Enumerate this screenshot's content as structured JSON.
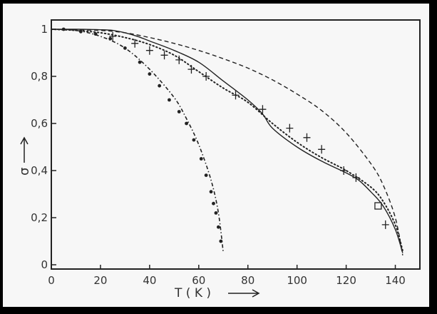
{
  "chart_data": {
    "type": "line",
    "xlabel": "T ( K )",
    "ylabel": "σ",
    "xlim": [
      0,
      150
    ],
    "ylim": [
      0,
      1.05
    ],
    "x_ticks": [
      "0",
      "20",
      "40",
      "60",
      "80",
      "100",
      "120",
      "140"
    ],
    "y_ticks": [
      "0",
      "0,2",
      "0,4",
      "0,6",
      "0,8",
      "1"
    ],
    "grid": false,
    "legend": "none",
    "series": [
      {
        "style": "dashed",
        "points": [
          [
            0,
            1
          ],
          [
            20,
            0.995
          ],
          [
            30,
            0.985
          ],
          [
            40,
            0.965
          ],
          [
            50,
            0.94
          ],
          [
            60,
            0.91
          ],
          [
            70,
            0.875
          ],
          [
            80,
            0.835
          ],
          [
            90,
            0.785
          ],
          [
            100,
            0.725
          ],
          [
            110,
            0.655
          ],
          [
            120,
            0.56
          ],
          [
            130,
            0.43
          ],
          [
            135,
            0.34
          ],
          [
            140,
            0.2
          ],
          [
            143,
            0.04
          ]
        ]
      },
      {
        "style": "solid",
        "points": [
          [
            0,
            1
          ],
          [
            10,
            1
          ],
          [
            20,
            0.998
          ],
          [
            25,
            0.995
          ],
          [
            30,
            0.985
          ],
          [
            35,
            0.97
          ],
          [
            40,
            0.95
          ],
          [
            50,
            0.91
          ],
          [
            60,
            0.86
          ],
          [
            70,
            0.78
          ],
          [
            80,
            0.7
          ],
          [
            86,
            0.64
          ],
          [
            90,
            0.58
          ],
          [
            100,
            0.5
          ],
          [
            110,
            0.44
          ],
          [
            120,
            0.39
          ],
          [
            125,
            0.36
          ],
          [
            130,
            0.31
          ],
          [
            135,
            0.25
          ],
          [
            140,
            0.15
          ],
          [
            143,
            0.05
          ]
        ]
      },
      {
        "style": "dotted",
        "points": [
          [
            0,
            1
          ],
          [
            10,
            0.995
          ],
          [
            20,
            0.985
          ],
          [
            30,
            0.965
          ],
          [
            40,
            0.935
          ],
          [
            50,
            0.89
          ],
          [
            60,
            0.82
          ],
          [
            70,
            0.75
          ],
          [
            80,
            0.69
          ],
          [
            90,
            0.6
          ],
          [
            100,
            0.52
          ],
          [
            110,
            0.455
          ],
          [
            120,
            0.4
          ],
          [
            130,
            0.33
          ],
          [
            135,
            0.27
          ],
          [
            140,
            0.17
          ],
          [
            143,
            0.06
          ]
        ]
      },
      {
        "style": "dash-dot",
        "points": [
          [
            0,
            1
          ],
          [
            10,
            0.995
          ],
          [
            20,
            0.97
          ],
          [
            30,
            0.92
          ],
          [
            40,
            0.83
          ],
          [
            50,
            0.71
          ],
          [
            55,
            0.62
          ],
          [
            60,
            0.51
          ],
          [
            65,
            0.36
          ],
          [
            68,
            0.22
          ],
          [
            70,
            0.05
          ]
        ]
      },
      {
        "style": "plus-markers",
        "points": [
          [
            25,
            0.97
          ],
          [
            34,
            0.94
          ],
          [
            40,
            0.91
          ],
          [
            46,
            0.89
          ],
          [
            52,
            0.87
          ],
          [
            57,
            0.83
          ],
          [
            63,
            0.8
          ],
          [
            75,
            0.72
          ],
          [
            86,
            0.66
          ],
          [
            97,
            0.58
          ],
          [
            104,
            0.54
          ],
          [
            110,
            0.49
          ],
          [
            119,
            0.4
          ],
          [
            124,
            0.37
          ],
          [
            136,
            0.17
          ]
        ]
      },
      {
        "style": "square-markers",
        "points": [
          [
            133,
            0.25
          ]
        ]
      },
      {
        "style": "dot-markers",
        "points": [
          [
            5,
            1
          ],
          [
            12,
            0.99
          ],
          [
            18,
            0.98
          ],
          [
            24,
            0.96
          ],
          [
            30,
            0.92
          ],
          [
            36,
            0.86
          ],
          [
            40,
            0.81
          ],
          [
            44,
            0.76
          ],
          [
            48,
            0.7
          ],
          [
            52,
            0.65
          ],
          [
            55,
            0.6
          ],
          [
            58,
            0.53
          ],
          [
            61,
            0.45
          ],
          [
            63,
            0.38
          ],
          [
            65,
            0.31
          ],
          [
            66,
            0.26
          ],
          [
            67,
            0.22
          ],
          [
            68,
            0.16
          ],
          [
            69,
            0.1
          ]
        ]
      }
    ]
  },
  "colors": {
    "frame": "#000000",
    "paper": "#f7f7f7",
    "ink": "#222222"
  }
}
